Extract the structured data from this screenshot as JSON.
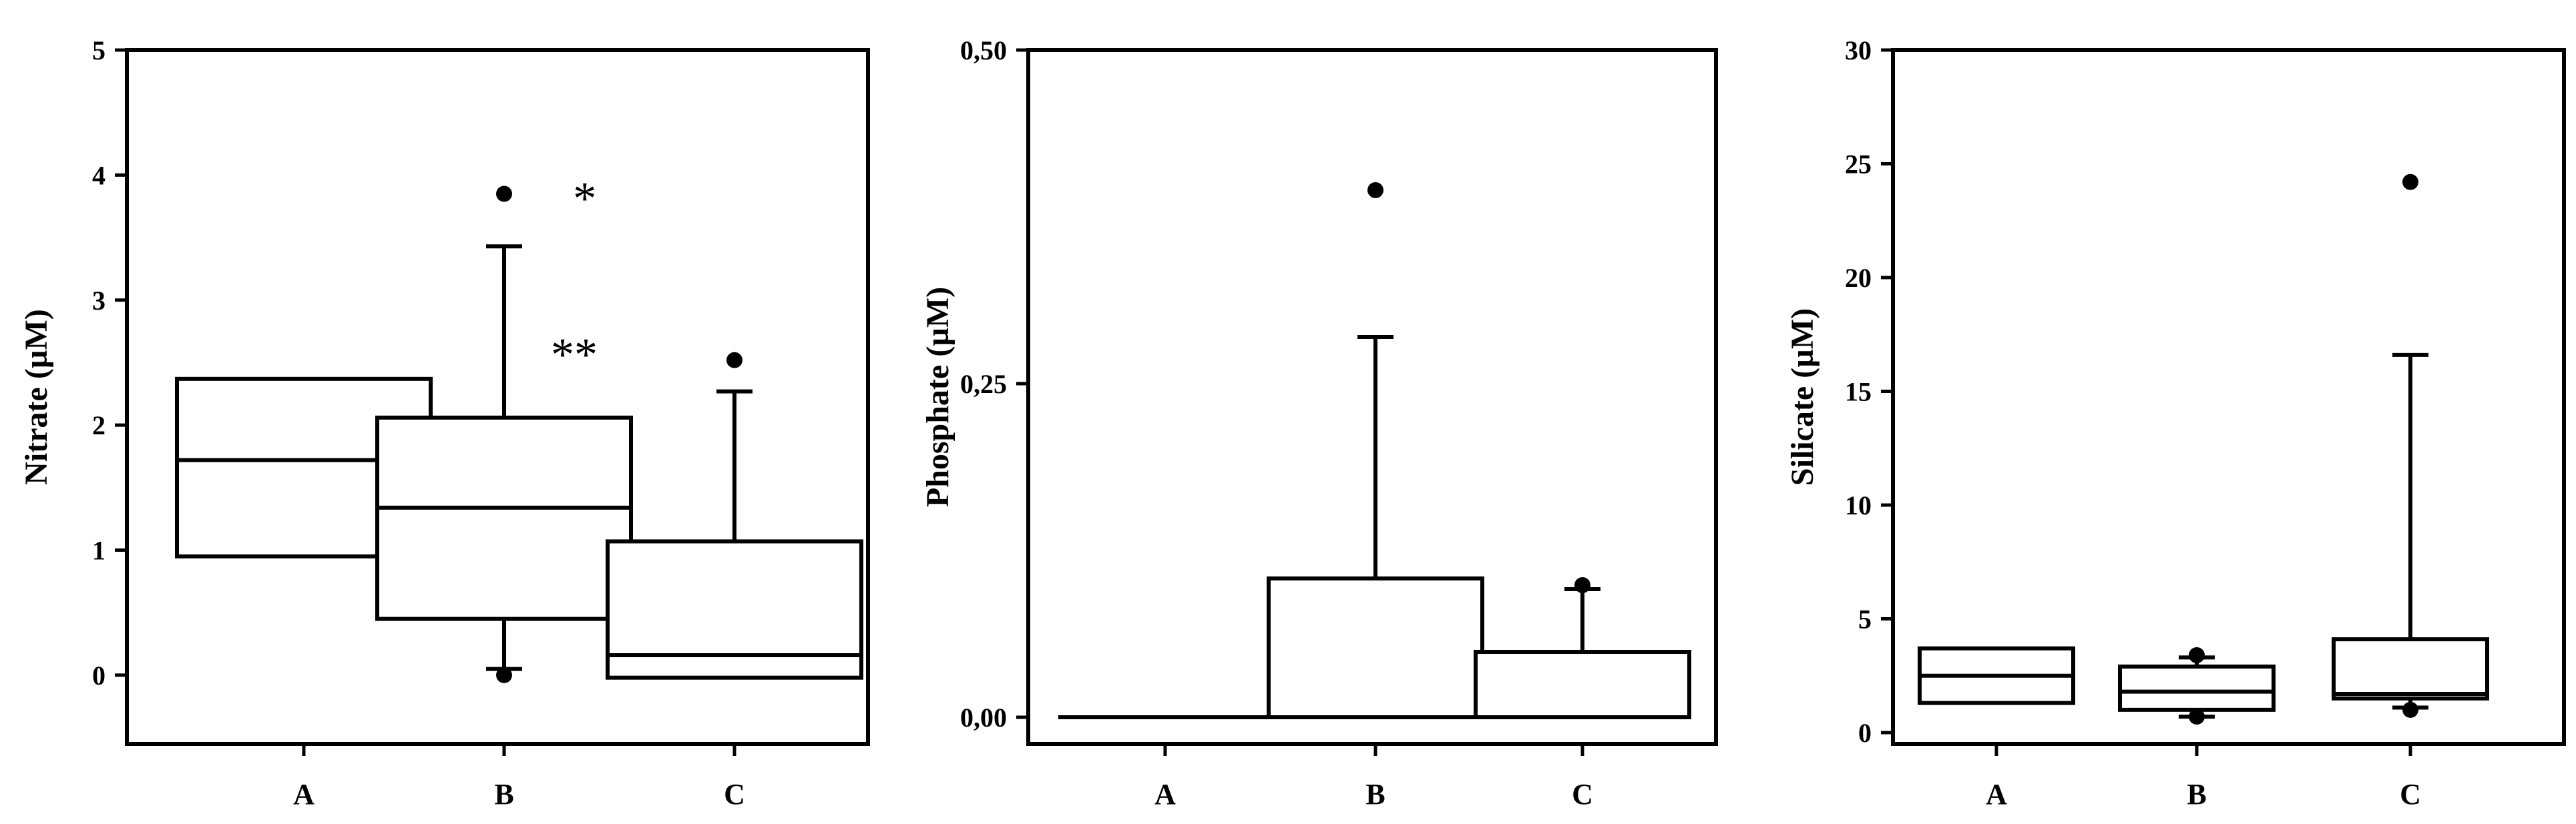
{
  "chart_data": [
    {
      "type": "box",
      "ylabel": "Nitrate (µM)",
      "ylim": [
        -0.55,
        5
      ],
      "yticks": [
        "0",
        "1",
        "2",
        "3",
        "4",
        "5"
      ],
      "ytick_values": [
        0,
        1,
        2,
        3,
        4,
        5
      ],
      "categories": [
        "A",
        "B",
        "C"
      ],
      "boxes": [
        {
          "category": "A",
          "q1": 0.95,
          "median": 1.72,
          "q3": 2.37,
          "whisker_low": null,
          "whisker_high": null,
          "outliers": []
        },
        {
          "category": "B",
          "q1": 0.45,
          "median": 1.34,
          "q3": 2.06,
          "whisker_low": 0.05,
          "whisker_high": 3.43,
          "outliers": [
            0.0,
            3.85
          ]
        },
        {
          "category": "C",
          "q1": -0.02,
          "median": 0.16,
          "q3": 1.07,
          "whisker_low": null,
          "whisker_high": 2.27,
          "outliers": [
            2.52
          ]
        }
      ],
      "annotations": [
        {
          "text": "*",
          "x": 1.35,
          "y": 3.85
        },
        {
          "text": "**",
          "x": 2.5,
          "y": 2.6
        }
      ]
    },
    {
      "type": "box",
      "ylabel": "Phosphate (µM)",
      "ylim": [
        -0.02,
        0.5
      ],
      "yticks": [
        "0,00",
        "0,25",
        "0,50"
      ],
      "ytick_values": [
        0,
        0.25,
        0.5
      ],
      "categories": [
        "A",
        "B",
        "C"
      ],
      "boxes": [
        {
          "category": "A",
          "q1": 0.0,
          "median": 0.0,
          "q3": 0.0,
          "whisker_low": null,
          "whisker_high": null,
          "outliers": []
        },
        {
          "category": "B",
          "q1": 0.0,
          "median": 0.0,
          "q3": 0.104,
          "whisker_low": null,
          "whisker_high": 0.285,
          "outliers": [
            0.395
          ]
        },
        {
          "category": "C",
          "q1": 0.0,
          "median": 0.0,
          "q3": 0.049,
          "whisker_low": null,
          "whisker_high": 0.096,
          "outliers": [
            0.099
          ]
        }
      ],
      "annotations": []
    },
    {
      "type": "box",
      "ylabel": "Silicate (µM)",
      "ylim": [
        -0.5,
        30
      ],
      "yticks": [
        "0",
        "5",
        "10",
        "15",
        "20",
        "25",
        "30"
      ],
      "ytick_values": [
        0,
        5,
        10,
        15,
        20,
        25,
        30
      ],
      "categories": [
        "A",
        "B",
        "C"
      ],
      "boxes": [
        {
          "category": "A",
          "q1": 1.3,
          "median": 2.5,
          "q3": 3.7,
          "whisker_low": null,
          "whisker_high": null,
          "outliers": []
        },
        {
          "category": "B",
          "q1": 1.0,
          "median": 1.8,
          "q3": 2.9,
          "whisker_low": 0.7,
          "whisker_high": 3.3,
          "outliers": [
            0.7,
            3.4
          ]
        },
        {
          "category": "C",
          "q1": 1.5,
          "median": 1.7,
          "q3": 4.1,
          "whisker_low": 1.1,
          "whisker_high": 16.6,
          "outliers": [
            1.0,
            24.2
          ]
        }
      ],
      "annotations": []
    }
  ]
}
